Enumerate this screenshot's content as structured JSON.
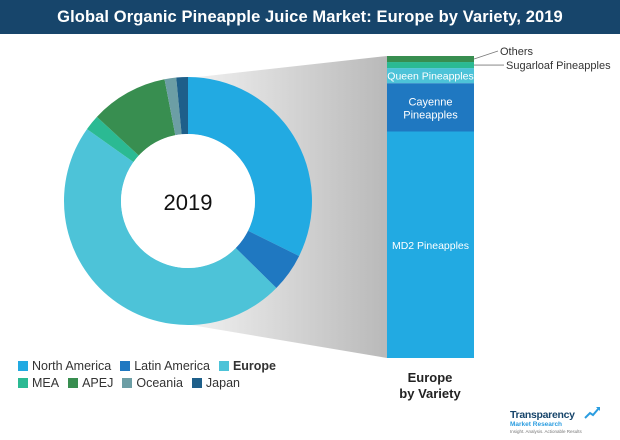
{
  "title": "Global Organic Pineapple Juice Market: Europe by Variety, 2019",
  "chart_data": [
    {
      "type": "pie",
      "center_label": "2019",
      "legend_placement": "bottom-left",
      "slices": [
        {
          "name": "North America",
          "value": 32,
          "color": "#22aae2"
        },
        {
          "name": "Latin America",
          "value": 5,
          "color": "#1f78c1"
        },
        {
          "name": "Europe",
          "value": 47,
          "color": "#4dc3d8"
        },
        {
          "name": "MEA",
          "value": 2,
          "color": "#2bba93"
        },
        {
          "name": "APEJ",
          "value": 10,
          "color": "#388e50"
        },
        {
          "name": "Oceania",
          "value": 1.5,
          "color": "#6c9ea5"
        },
        {
          "name": "Japan",
          "value": 1.5,
          "color": "#1e5f8a"
        }
      ]
    },
    {
      "type": "bar",
      "stacked": true,
      "category": "Europe by Variety",
      "caption_lines": [
        "Europe",
        "by Variety"
      ],
      "segments": [
        {
          "name": "MD2 Pineapples",
          "value": 75,
          "color": "#22aae2"
        },
        {
          "name": "Cayenne Pineapples",
          "value": 16,
          "color": "#1f78c1"
        },
        {
          "name": "Queen Pineapples",
          "value": 5,
          "color": "#4dc3d8"
        },
        {
          "name": "Sugarloaf Pineapples",
          "value": 2,
          "color": "#2bba93"
        },
        {
          "name": "Others",
          "value": 2,
          "color": "#388e50"
        }
      ]
    }
  ],
  "legend": {
    "rows": [
      [
        {
          "label": "North America",
          "color": "#22aae2",
          "bold": false
        },
        {
          "label": "Latin America",
          "color": "#1f78c1",
          "bold": false
        },
        {
          "label": "Europe",
          "color": "#4dc3d8",
          "bold": true
        }
      ],
      [
        {
          "label": "MEA",
          "color": "#2bba93",
          "bold": false
        },
        {
          "label": "APEJ",
          "color": "#388e50",
          "bold": false
        },
        {
          "label": "Oceania",
          "color": "#6c9ea5",
          "bold": false
        },
        {
          "label": "Japan",
          "color": "#1e5f8a",
          "bold": false
        }
      ]
    ]
  },
  "logo": {
    "name": "Transparency",
    "sub": "Market Research",
    "tagline": "Insight. Analysis. Actionable Results"
  }
}
